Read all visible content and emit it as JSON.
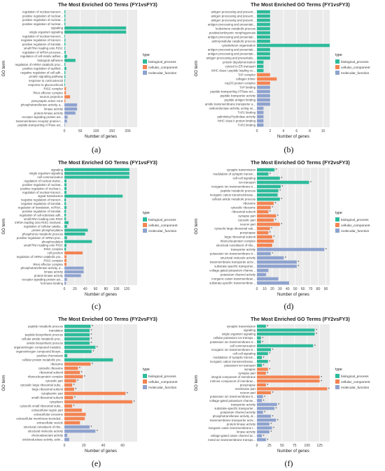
{
  "panel_labels": [
    "(a)",
    "(b)",
    "(c)",
    "(d)",
    "(e)",
    "(f)"
  ],
  "legend": {
    "title": "type",
    "entries": [
      "biological_process",
      "cellular_component",
      "molecular_function"
    ]
  },
  "colors": {
    "biological_process": "#2dbb9b",
    "cellular_component": "#f48452",
    "molecular_function": "#8fa3cf"
  },
  "chart_data": [
    {
      "type": "bar",
      "orientation": "horizontal",
      "title": "The Most Enriched GO Terms (FY1vsFY3)",
      "xlabel": "Number of genes",
      "ylabel": "GO term",
      "xlim": [
        0,
        230
      ],
      "xticks": [
        0,
        50,
        100,
        150,
        200
      ],
      "categories": [
        "regulation of nuclear-transcri...",
        "positive regulation of nuclear...",
        "positive regulation of nuclear...",
        "positive regulation of nuclear...",
        "signaling",
        "single organism signaling",
        "regulation of nuclear-transcri...",
        "negative regulation of transcri...",
        "positive regulation of translat...",
        "small RNA loading onto RISC",
        "regulation of mRNA processi...",
        "regulation of cell-matrix adhes...",
        "biological adhesion",
        "regulation of mRNA catabolic proc...",
        "positive regulation of epitheli...",
        "negative regulation of cell adh...",
        "protein signaling pathway",
        "response to corticosteroid",
        "response to glucocorticoid",
        "RISC complex",
        "RNAi effector complex",
        "neuron projection",
        "presynaptic active zone",
        "phosphotransferase activity, a...",
        "kinase activity",
        "protein kinase activity",
        "receptor signaling protein act...",
        "transmembrane receptor protein t...",
        "peptide-transporting ATPase act..."
      ],
      "types": [
        "BP",
        "BP",
        "BP",
        "BP",
        "BP",
        "BP",
        "BP",
        "BP",
        "BP",
        "BP",
        "BP",
        "BP",
        "BP",
        "BP",
        "BP",
        "BP",
        "BP",
        "BP",
        "BP",
        "CC",
        "CC",
        "CC",
        "CC",
        "MF",
        "MF",
        "MF",
        "MF",
        "MF",
        "MF"
      ],
      "values": [
        3,
        3,
        3,
        3,
        195,
        195,
        2,
        3,
        3,
        2,
        4,
        8,
        35,
        3,
        6,
        3,
        3,
        2,
        2,
        5,
        5,
        18,
        3,
        40,
        40,
        35,
        10,
        8,
        2
      ],
      "stars": [],
      "legend_position": "right"
    },
    {
      "type": "bar",
      "orientation": "horizontal",
      "title": "The Most Enriched GO Terms (FY1vsFY3)",
      "xlabel": "Number of genes",
      "ylabel": "GO term",
      "xlim": [
        0,
        11
      ],
      "xticks": [
        0,
        2,
        4,
        6,
        8,
        10
      ],
      "categories": [
        "antigen processing and present...",
        "antigen processing and present...",
        "antigen processing and present...",
        "antigen processing and presentati...",
        "leukotriene metabolic process",
        "positive/embryonic morphogenesis",
        "antigen processing and presentati...",
        "antimyotubular catabolic process",
        "cytoskeleton organization",
        "antigen processing and presentati...",
        "antigen processing and presentati...",
        "antigen processing and presentatio...",
        "protein depolymerization",
        "cytosol to ER transport",
        "MHC class I peptide loading co...",
        "TAP complex",
        "collagen trimer",
        "Arp2/3 protein complex",
        "TAP binding",
        "peptide-transporting ATPase act...",
        "peptide transporter activity",
        "peptide antigen binding",
        "amide transmembrane transporter a...",
        "oxidoreductase activity, acting on...",
        "TAP1 binding",
        "palmitoleyl hydrolase activity",
        "MHC class II protein binding",
        "TAP2 binding"
      ],
      "types": [
        "BP",
        "BP",
        "BP",
        "BP",
        "BP",
        "BP",
        "BP",
        "BP",
        "BP",
        "BP",
        "BP",
        "BP",
        "BP",
        "BP",
        "BP",
        "CC",
        "CC",
        "CC",
        "MF",
        "MF",
        "MF",
        "MF",
        "MF",
        "MF",
        "MF",
        "MF",
        "MF",
        "MF"
      ],
      "values": [
        2,
        2,
        2,
        2,
        2,
        2,
        2,
        2,
        11,
        2,
        2,
        2,
        1,
        1,
        1,
        2,
        3,
        2,
        2,
        2,
        2,
        2,
        2,
        1,
        1,
        1,
        1,
        1
      ],
      "stars": [],
      "legend_position": "right"
    },
    {
      "type": "bar",
      "orientation": "horizontal",
      "title": "The Most Enriched GO Terms (FY1vsFY3)",
      "xlabel": "Number of genes",
      "ylabel": "GO term",
      "xlim": [
        0,
        140
      ],
      "xticks": [
        0,
        20,
        40,
        60,
        80,
        100,
        120
      ],
      "categories": [
        "signaling",
        "single organism signaling",
        "cell communication",
        "regulation of nuclear-transc...",
        "positive regulation of nuclear...",
        "positive regulation of nuclear-t...",
        "regulation of nuclear-transcri...",
        "signal transduction",
        "negative regulation of transcri...",
        "negative regulation of translat...",
        "regulation of translation, ncRNA...",
        "positive regulation of translat...",
        "regulation of cell-substrate adh...",
        "small RNA loading onto RISC",
        "mRNA loading onto RISC involved...",
        "regulation of cellular catabo...",
        "protein phosphorylation",
        "phosphorus metabolic process",
        "positive regulation of mRNA proc...",
        "phosphorylation",
        "small RNA loading onto RISC",
        "RISC complex",
        "cell junction",
        "regulation of mRNA catabolic pro...",
        "RISC complex",
        "RNAi effector complex",
        "phosphotransferase activity, a...",
        "kinase activity",
        "protein kinase activity",
        "receptor signaling protein act...",
        "hormone binding"
      ],
      "types": [
        "BP",
        "BP",
        "BP",
        "BP",
        "BP",
        "BP",
        "BP",
        "BP",
        "BP",
        "BP",
        "BP",
        "BP",
        "BP",
        "BP",
        "BP",
        "BP",
        "BP",
        "BP",
        "BP",
        "BP",
        "BP",
        "BP",
        "CC",
        "CC",
        "CC",
        "CC",
        "MF",
        "MF",
        "MF",
        "MF",
        "MF"
      ],
      "values": [
        125,
        125,
        125,
        4,
        4,
        4,
        4,
        112,
        3,
        3,
        4,
        3,
        3,
        3,
        8,
        5,
        45,
        40,
        5,
        53,
        4,
        3,
        35,
        4,
        4,
        4,
        37,
        37,
        32,
        5,
        3
      ],
      "stars": [],
      "legend_position": "right"
    },
    {
      "type": "bar",
      "orientation": "horizontal",
      "title": "The Most Enriched GO Terms (FY2vsFY3)",
      "xlabel": "Number of genes",
      "ylabel": "GO term",
      "xlim": [
        0,
        95
      ],
      "xticks": [
        0,
        10,
        20,
        30,
        40,
        50,
        60,
        70,
        80,
        90
      ],
      "categories": [
        "synaptic transmission",
        "modulation of synaptic transm...",
        "cell-cell signaling",
        "ion transport",
        "inorganic ion transmembrane tr...",
        "peptide metabolic process",
        "inorganic cation transmembrane...",
        "cellular amide metabolic process",
        "ribosome",
        "cytosolic ribosome",
        "ribosomal subunit",
        "synapse part",
        "cytosolic part",
        "neuron part",
        "cytosolic large ribosomal sub...",
        "presynapse",
        "large ribosomal subunit",
        "ribonucleoprotein complex",
        "structural constituent of ribo...",
        "transporter activity",
        "potassium ion transmembrane tr...",
        "structural molecule activity",
        "transmembrane transporter activ...",
        "substrate-specific transporter...",
        "voltage-gated potassium channe...",
        "potassium channel activity",
        "inorganic cation transmembran...",
        "substrate-specific transmembran..."
      ],
      "types": [
        "BP",
        "BP",
        "BP",
        "BP",
        "BP",
        "BP",
        "BP",
        "BP",
        "CC",
        "CC",
        "CC",
        "CC",
        "CC",
        "CC",
        "CC",
        "CC",
        "CC",
        "CC",
        "CC",
        "MF",
        "MF",
        "MF",
        "MF",
        "MF",
        "MF",
        "MF",
        "MF",
        "MF"
      ],
      "values": [
        23,
        15,
        30,
        68,
        31,
        28,
        27,
        30,
        22,
        18,
        15,
        25,
        22,
        30,
        17,
        15,
        20,
        22,
        20,
        88,
        18,
        35,
        52,
        52,
        15,
        12,
        28,
        42
      ],
      "stars": [
        0,
        1,
        2,
        3,
        4,
        5,
        7,
        8,
        9,
        10,
        11,
        12,
        13,
        14,
        15,
        16,
        19,
        20,
        21,
        22,
        23
      ],
      "legend_position": "right"
    },
    {
      "type": "bar",
      "orientation": "horizontal",
      "title": "The Most Enriched GO Terms (FY2vsFY3)",
      "xlabel": "Number of genes",
      "ylabel": "GO term",
      "xlim": [
        0,
        75
      ],
      "xticks": [
        0,
        20,
        40,
        60
      ],
      "categories": [
        "peptide metabolic process",
        "translation",
        "peptide biosynthetic process",
        "cellular amide metabolic proc...",
        "amide biosynthetic process",
        "organonitrogen compound metabol...",
        "organonitrogen compound biosyn...",
        "positive chemotaxis",
        "cellular protein metabolic pro...",
        "ribosome",
        "cytosolic ribosome",
        "ribosomal subunit",
        "ribonucleoprotein complex",
        "cytosolic part",
        "cytosolic large ribosomal subu...",
        "large ribosomal subunit",
        "cytoplasmic part",
        "small ribosomal subunit",
        "cytoplasm",
        "cytosolic small ribosomal subu...",
        "extracellular region part",
        "extracellular exosome",
        "extracellular membrane-bounded...",
        "extracellular vesicle",
        "structural constituent of ribo...",
        "structural molecule activity",
        "chemoattractant activity",
        "oxidoreductase activity, actin..."
      ],
      "types": [
        "BP",
        "BP",
        "BP",
        "BP",
        "BP",
        "BP",
        "BP",
        "BP",
        "BP",
        "CC",
        "CC",
        "CC",
        "CC",
        "CC",
        "CC",
        "CC",
        "CC",
        "CC",
        "CC",
        "CC",
        "CC",
        "CC",
        "CC",
        "CC",
        "MF",
        "MF",
        "MF",
        "MF"
      ],
      "values": [
        27,
        26,
        26,
        26,
        26,
        32,
        28,
        3,
        50,
        27,
        14,
        16,
        19,
        12,
        8,
        10,
        63,
        9,
        70,
        8,
        18,
        22,
        21,
        16,
        26,
        32,
        3,
        5
      ],
      "stars": [
        0,
        1,
        2,
        3,
        4,
        5,
        6,
        9,
        10,
        11,
        12,
        13,
        14,
        15,
        16,
        17,
        18,
        19,
        24,
        25
      ],
      "legend_position": "right"
    },
    {
      "type": "bar",
      "orientation": "horizontal",
      "title": "The Most Enriched GO Terms (FY2vsFY3)",
      "xlabel": "Number of genes",
      "ylabel": "GO term",
      "xlim": [
        0,
        145
      ],
      "xticks": [
        0,
        25,
        50,
        75,
        100,
        125
      ],
      "categories": [
        "synaptic transmission",
        "signaling",
        "single organism signaling",
        "cellular potassium ion transpo...",
        "potassium ion transmembrane tr...",
        "cell communication",
        "inorganic ion transmembrane tr...",
        "cell-cell signaling",
        "modulation of synaptic transm...",
        "inorganic cation transmembrane...",
        "potassium ion transport",
        "synapse",
        "synapse part",
        "integral component of membrane",
        "intrinsic component of membran...",
        "presynapse",
        "membrane part",
        "neuron part",
        "potassium ion transmembrane tr...",
        "voltage-gated potassium channe...",
        "transporter activity",
        "substrate-specific transporter...",
        "potassium channel activity",
        "phosphotransferase activity, al...",
        "transmembrane transporter activ...",
        "protein kinase activity",
        "inorganic cation transmembrane t...",
        "kinase activity",
        "voltage-gated cation channel ac...",
        "metal ion transmembrane transpo..."
      ],
      "types": [
        "BP",
        "BP",
        "BP",
        "BP",
        "BP",
        "BP",
        "BP",
        "BP",
        "BP",
        "BP",
        "BP",
        "CC",
        "CC",
        "CC",
        "CC",
        "CC",
        "CC",
        "CC",
        "MF",
        "MF",
        "MF",
        "MF",
        "MF",
        "MF",
        "MF",
        "MF",
        "MF",
        "MF",
        "MF",
        "MF"
      ],
      "values": [
        18,
        115,
        115,
        8,
        8,
        112,
        28,
        22,
        10,
        22,
        10,
        22,
        18,
        125,
        125,
        18,
        140,
        28,
        12,
        10,
        40,
        35,
        12,
        28,
        38,
        25,
        30,
        25,
        10,
        18
      ],
      "stars": [
        0,
        1,
        2,
        3,
        4,
        5,
        6,
        7,
        8,
        9,
        10,
        11,
        12,
        13,
        14,
        15,
        16,
        17,
        18,
        19,
        20,
        21,
        22,
        23,
        24,
        25,
        26,
        27,
        28,
        29
      ],
      "legend_position": "right"
    }
  ]
}
